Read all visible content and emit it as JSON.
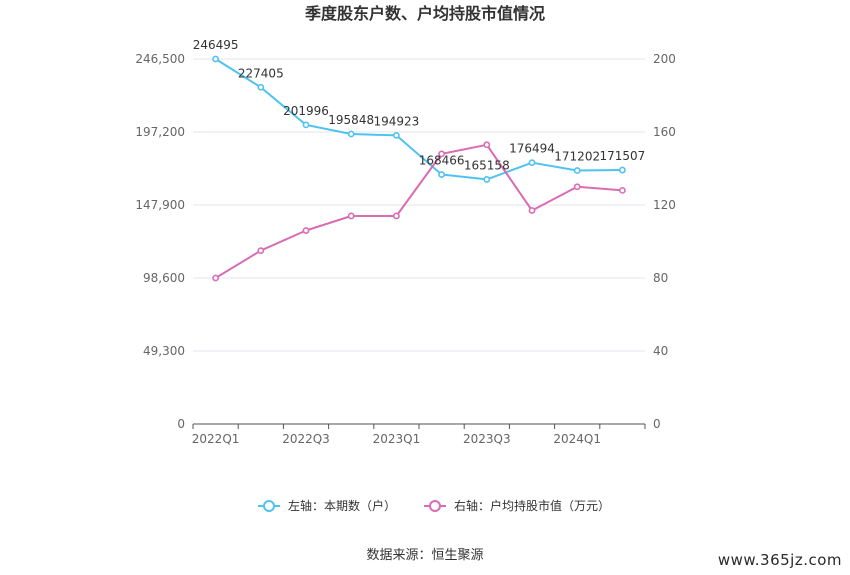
{
  "chart_data": {
    "type": "line",
    "title": "季度股东户数、户均持股市值情况",
    "source": "数据来源：恒生聚源",
    "watermark": "www.365jz.com",
    "x": [
      "2022Q1",
      "2022Q2",
      "2022Q3",
      "2022Q4",
      "2023Q1",
      "2023Q2",
      "2023Q3",
      "2023Q4",
      "2024Q1",
      "2024Q2"
    ],
    "x_tick_labels": [
      "2022Q1",
      "2022Q3",
      "2023Q1",
      "2023Q3",
      "2024Q1"
    ],
    "left_axis": {
      "ticks": [
        "0",
        "49,300",
        "98,600",
        "147,900",
        "197,200",
        "246,500"
      ],
      "ylim": [
        0,
        246500
      ]
    },
    "right_axis": {
      "ticks": [
        "0",
        "40",
        "80",
        "120",
        "160",
        "200"
      ],
      "ylim": [
        0,
        200
      ]
    },
    "series": [
      {
        "name": "左轴：本期数（户）",
        "axis": "left",
        "color": "#4fc3ef",
        "values": [
          246495,
          227405,
          201996,
          195848,
          194923,
          168466,
          165158,
          176494,
          171202,
          171507
        ],
        "labels": [
          "246495",
          "227405",
          "201996",
          "195848",
          "194923",
          "168466",
          "165158",
          "176494",
          "171202",
          "171507"
        ]
      },
      {
        "name": "右轴：户均持股市值（万元）",
        "axis": "right",
        "color": "#d96cb4",
        "values": [
          80,
          95,
          106,
          114,
          114,
          148,
          153,
          117,
          130,
          128
        ]
      }
    ],
    "grid": true,
    "legend_position": "bottom"
  }
}
